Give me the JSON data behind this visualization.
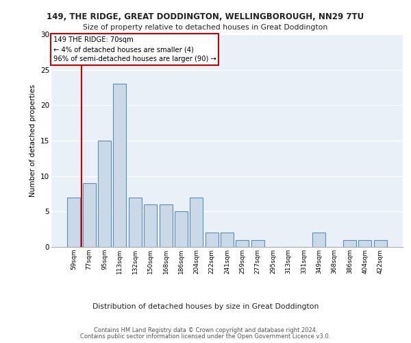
{
  "title1": "149, THE RIDGE, GREAT DODDINGTON, WELLINGBOROUGH, NN29 7TU",
  "title2": "Size of property relative to detached houses in Great Doddington",
  "xlabel": "Distribution of detached houses by size in Great Doddington",
  "ylabel": "Number of detached properties",
  "categories": [
    "59sqm",
    "77sqm",
    "95sqm",
    "113sqm",
    "132sqm",
    "150sqm",
    "168sqm",
    "186sqm",
    "204sqm",
    "222sqm",
    "241sqm",
    "259sqm",
    "277sqm",
    "295sqm",
    "313sqm",
    "331sqm",
    "349sqm",
    "368sqm",
    "386sqm",
    "404sqm",
    "422sqm"
  ],
  "values": [
    7,
    9,
    15,
    23,
    7,
    6,
    6,
    5,
    7,
    2,
    2,
    1,
    1,
    0,
    0,
    0,
    2,
    0,
    1,
    1,
    1
  ],
  "bar_color": "#c9d9e8",
  "bar_edge_color": "#5b8db8",
  "annotation_text": "149 THE RIDGE: 70sqm\n← 4% of detached houses are smaller (4)\n96% of semi-detached houses are larger (90) →",
  "annotation_box_color": "#ffffff",
  "annotation_box_edge_color": "#cc0000",
  "footnote1": "Contains HM Land Registry data © Crown copyright and database right 2024.",
  "footnote2": "Contains public sector information licensed under the Open Government Licence v3.0.",
  "ylim": [
    0,
    30
  ],
  "yticks": [
    0,
    5,
    10,
    15,
    20,
    25,
    30
  ],
  "background_color": "#eaf0f8",
  "grid_color": "#ffffff",
  "vline_color": "#cc0000",
  "vline_x": 0.5
}
